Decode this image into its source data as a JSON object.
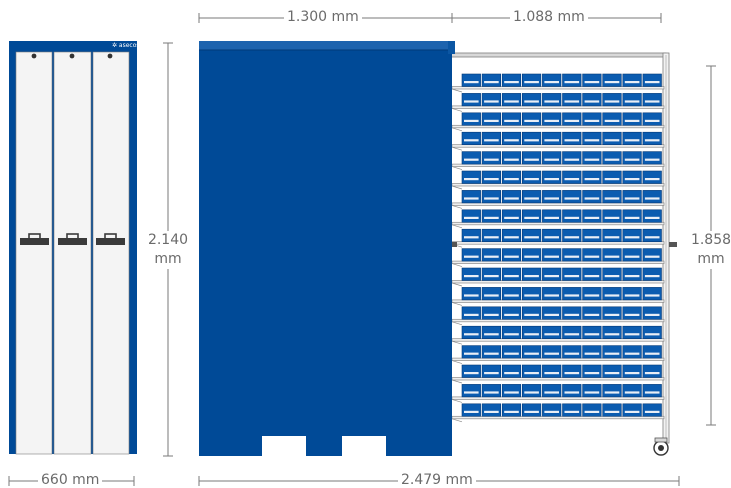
{
  "dimensions": {
    "width_closed": "660 mm",
    "height_closed_value": "2.140",
    "height_closed_unit": "mm",
    "depth_cabinet": "1.300 mm",
    "depth_pullout": "1.088 mm",
    "depth_total": "2.479 mm",
    "height_pullout_value": "1.858",
    "height_pullout_unit": "mm"
  },
  "brand_text": "✲ asecos",
  "pullout": {
    "shelf_count": 18,
    "bins_per_shelf": 10
  },
  "colors": {
    "cabinet_blue": "#004a97",
    "bin_blue": "#0b5cb0",
    "door_white": "#f4f4f4",
    "rack_grey": "#8a8a8a",
    "dim_grey": "#6b6b6b"
  }
}
